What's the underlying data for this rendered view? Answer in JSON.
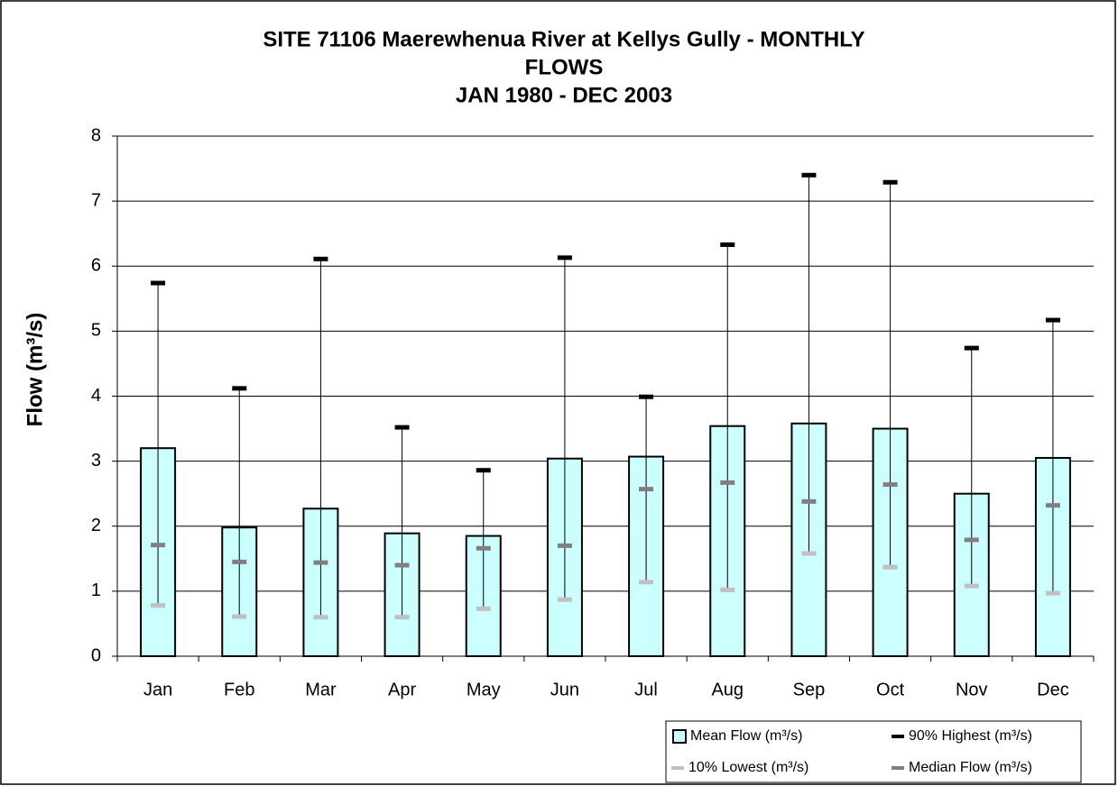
{
  "chart_data": {
    "type": "bar",
    "title": [
      "SITE 71106 Maerewhenua River at Kellys Gully - MONTHLY",
      "FLOWS",
      "JAN 1980 - DEC 2003"
    ],
    "y_label": "Flow (m³/s)",
    "categories": [
      "Jan",
      "Feb",
      "Mar",
      "Apr",
      "May",
      "Jun",
      "Jul",
      "Aug",
      "Sep",
      "Oct",
      "Nov",
      "Dec"
    ],
    "series": [
      {
        "name": "Mean Flow (m³/s)",
        "kind": "bar",
        "color": "#ccffff",
        "values": [
          3.2,
          1.98,
          2.27,
          1.89,
          1.85,
          3.04,
          3.07,
          3.54,
          3.58,
          3.5,
          2.5,
          3.05
        ]
      },
      {
        "name": "90% Highest (m³/s)",
        "kind": "marker",
        "color": "#000000",
        "values": [
          5.74,
          4.12,
          6.11,
          3.52,
          2.86,
          6.13,
          3.99,
          6.33,
          7.4,
          7.29,
          4.74,
          5.17
        ]
      },
      {
        "name": "10% Lowest (m³/s)",
        "kind": "marker",
        "color": "#c0c0c0",
        "values": [
          0.78,
          0.61,
          0.6,
          0.6,
          0.73,
          0.87,
          1.14,
          1.02,
          1.58,
          1.37,
          1.08,
          0.97
        ]
      },
      {
        "name": "Median Flow (m³/s)",
        "kind": "marker",
        "color": "#808080",
        "values": [
          1.71,
          1.45,
          1.44,
          1.4,
          1.66,
          1.7,
          2.57,
          2.67,
          2.38,
          2.64,
          1.79,
          2.32
        ]
      }
    ],
    "high_low_lines": true,
    "ylim": [
      0,
      8
    ],
    "yticks": [
      0,
      1,
      2,
      3,
      4,
      5,
      6,
      7,
      8
    ],
    "grid": true,
    "legend": "bottom-right"
  }
}
